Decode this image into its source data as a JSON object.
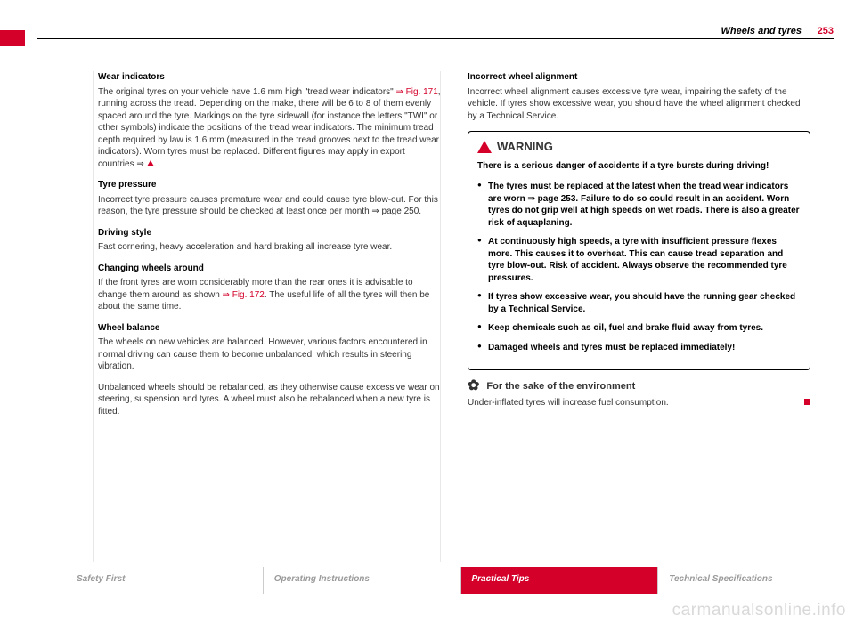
{
  "header": {
    "title": "Wheels and tyres",
    "page": "253"
  },
  "left": {
    "h1": "Wear indicators",
    "p1a": "The original tyres on your vehicle have 1.6 mm high \"tread wear indicators\" ",
    "fig1": "⇒ Fig. 171",
    "p1b": ", running across the tread. Depending on the make, there will be 6 to 8 of them evenly spaced around the tyre. Markings on the tyre sidewall (for instance the letters \"TWI\" or other symbols) indicate the positions of the tread wear indicators. The minimum tread depth required by law is 1.6 mm (measured in the tread grooves next to the tread wear indicators). Worn tyres must be replaced. Different figures may apply in export countries ⇒ ",
    "h2": "Tyre pressure",
    "p2": "Incorrect tyre pressure causes premature wear and could cause tyre blow-out. For this reason, the tyre pressure should be checked at least once per month ⇒ page 250.",
    "h3": "Driving style",
    "p3": "Fast cornering, heavy acceleration and hard braking all increase tyre wear.",
    "h4": "Changing wheels around",
    "p4a": "If the front tyres are worn considerably more than the rear ones it is advisable to change them around as shown ",
    "fig2": "⇒ Fig. 172",
    "p4b": ". The useful life of all the tyres will then be about the same time.",
    "h5": "Wheel balance",
    "p5": "The wheels on new vehicles are balanced. However, various factors encountered in normal driving can cause them to become unbalanced, which results in steering vibration.",
    "p6": "Unbalanced wheels should be rebalanced, as they otherwise cause excessive wear on steering, suspension and tyres. A wheel must also be rebalanced when a new tyre is fitted."
  },
  "right": {
    "h1": "Incorrect wheel alignment",
    "p1": "Incorrect wheel alignment causes excessive tyre wear, impairing the safety of the vehicle. If tyres show excessive wear, you should have the wheel alignment checked by a Technical Service.",
    "warn_title": "WARNING",
    "warn_lead": "There is a serious danger of accidents if a tyre bursts during driving!",
    "warn_b1": "The tyres must be replaced at the latest when the tread wear indicators are worn ⇒ page 253. Failure to do so could result in an accident. Worn tyres do not grip well at high speeds on wet roads. There is also a greater risk of aquaplaning.",
    "warn_b2": "At continuously high speeds, a tyre with insufficient pressure flexes more. This causes it to overheat. This can cause tread separation and tyre blow-out. Risk of accident. Always observe the recommended tyre pressures.",
    "warn_b3": "If tyres show excessive wear, you should have the running gear checked by a Technical Service.",
    "warn_b4": "Keep chemicals such as oil, fuel and brake fluid away from tyres.",
    "warn_b5": "Damaged wheels and tyres must be replaced immediately!",
    "env_title": "For the sake of the environment",
    "env_text": "Under-inflated tyres will increase fuel consumption."
  },
  "footer": {
    "t1": "Safety First",
    "t2": "Operating Instructions",
    "t3": "Practical Tips",
    "t4": "Technical Specifications"
  },
  "watermark": "carmanualsonline.info"
}
